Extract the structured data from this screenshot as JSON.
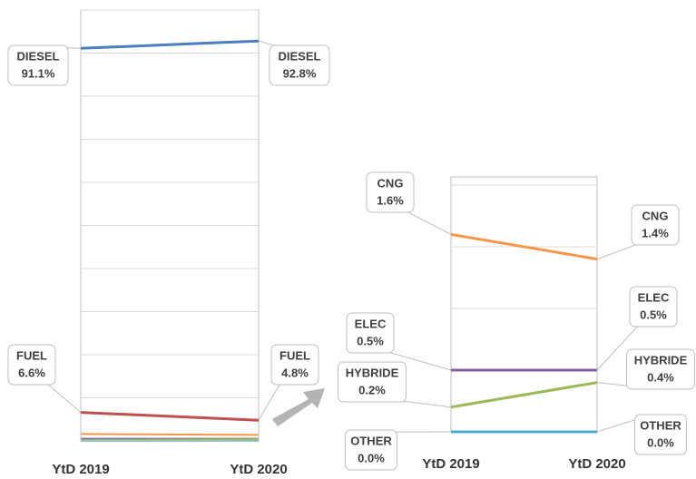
{
  "chart_data": [
    {
      "type": "slope",
      "categories": [
        "YtD 2019",
        "YtD 2020"
      ],
      "ylim": [
        0,
        100
      ],
      "yticks": [
        0,
        10,
        20,
        30,
        40,
        50,
        60,
        70,
        80,
        90,
        100
      ],
      "grid": true,
      "series": [
        {
          "name": "DIESEL",
          "color": "#4a7ebf",
          "values": [
            91.1,
            92.8
          ],
          "value_labels": [
            "91.1%",
            "92.8%"
          ]
        },
        {
          "name": "FUEL",
          "color": "#c0504d",
          "values": [
            6.6,
            4.8
          ],
          "value_labels": [
            "6.6%",
            "4.8%"
          ]
        }
      ]
    },
    {
      "type": "slope",
      "categories": [
        "YtD 2019",
        "YtD 2020"
      ],
      "ylim": [
        0,
        2
      ],
      "yticks": [
        0,
        0.5,
        1,
        1.5,
        2
      ],
      "grid": true,
      "series": [
        {
          "name": "CNG",
          "color": "#f79646",
          "values": [
            1.6,
            1.4
          ],
          "value_labels": [
            "1.6%",
            "1.4%"
          ]
        },
        {
          "name": "ELEC",
          "color": "#8064a2",
          "values": [
            0.5,
            0.5
          ],
          "value_labels": [
            "0.5%",
            "0.5%"
          ]
        },
        {
          "name": "HYBRIDE",
          "color": "#9bbb59",
          "values": [
            0.2,
            0.4
          ],
          "value_labels": [
            "0.2%",
            "0.4%"
          ]
        },
        {
          "name": "OTHER",
          "color": "#4bacc6",
          "values": [
            0.0,
            0.0
          ],
          "value_labels": [
            "0.0%",
            "0.0%"
          ]
        }
      ]
    }
  ]
}
